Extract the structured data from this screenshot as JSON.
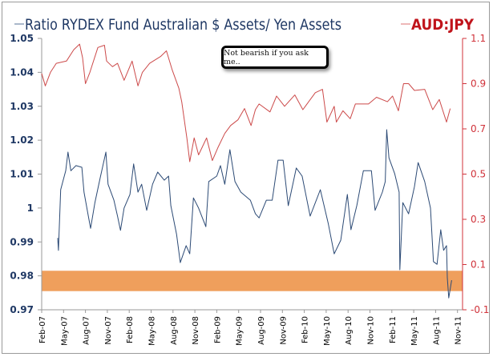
{
  "chart_data": {
    "type": "line",
    "title": "",
    "legend_placement": "top",
    "x_unit": "months since Feb-07",
    "x_tick_labels": [
      "Feb-07",
      "May-07",
      "Aug-07",
      "Nov-07",
      "Feb-08",
      "May-08",
      "Aug-08",
      "Nov-08",
      "Feb-09",
      "May-09",
      "Aug-09",
      "Nov-09",
      "Feb-10",
      "May-10",
      "Aug-10",
      "Nov-10",
      "Feb-11",
      "May-11",
      "Aug-11",
      "Nov-11"
    ],
    "x_tick_step_months": 3,
    "y_left": {
      "min": 0.97,
      "max": 1.05,
      "ticks": [
        "0.97",
        "0.98",
        "0.99",
        "1",
        "1.01",
        "1.02",
        "1.03",
        "1.04",
        "1.05"
      ]
    },
    "y_right": {
      "min": -0.1,
      "max": 1.1,
      "ticks": [
        "-0.1",
        "0.1",
        "0.3",
        "0.5",
        "0.7",
        "0.9",
        "1.1"
      ]
    },
    "highlight_band": {
      "axis": "left",
      "from": 0.9755,
      "to": 0.9815,
      "color": "#ef9f5c"
    },
    "annotation": "Not bearish if you ask me..",
    "series": [
      {
        "name": "Ratio RYDEX Fund Australian $ Assets/ Yen Assets",
        "axis": "left",
        "color": "#2c4a75",
        "points": [
          [
            2.2,
            0.9912
          ],
          [
            2.3,
            0.9875
          ],
          [
            2.6,
            1.0054
          ],
          [
            2.9,
            1.0078
          ],
          [
            3.3,
            1.011
          ],
          [
            3.6,
            1.0165
          ],
          [
            4.0,
            1.011
          ],
          [
            4.7,
            1.0125
          ],
          [
            5.5,
            1.012
          ],
          [
            5.8,
            1.0047
          ],
          [
            6.4,
            0.9976
          ],
          [
            6.7,
            0.994
          ],
          [
            7.3,
            1.0016
          ],
          [
            8.0,
            1.0087
          ],
          [
            8.8,
            1.0165
          ],
          [
            9.1,
            1.007
          ],
          [
            9.9,
            1.0023
          ],
          [
            10.4,
            0.9976
          ],
          [
            10.8,
            0.9934
          ],
          [
            11.3,
            1.0
          ],
          [
            12.1,
            1.004
          ],
          [
            12.6,
            1.013
          ],
          [
            13.2,
            1.0047
          ],
          [
            13.7,
            1.007
          ],
          [
            14.4,
            0.9993
          ],
          [
            15.2,
            1.007
          ],
          [
            15.9,
            1.0106
          ],
          [
            16.8,
            1.0082
          ],
          [
            17.4,
            1.0094
          ],
          [
            17.7,
            1.0007
          ],
          [
            18.5,
            0.9922
          ],
          [
            19.0,
            0.9839
          ],
          [
            19.8,
            0.9889
          ],
          [
            20.3,
            0.9865
          ],
          [
            20.8,
            1.003
          ],
          [
            21.5,
            1.0
          ],
          [
            22.5,
            0.9945
          ],
          [
            22.9,
            1.0078
          ],
          [
            24.0,
            1.0094
          ],
          [
            24.5,
            1.0125
          ],
          [
            25.1,
            1.007
          ],
          [
            25.8,
            1.0172
          ],
          [
            26.5,
            1.0078
          ],
          [
            27.3,
            1.0047
          ],
          [
            28.6,
            1.0023
          ],
          [
            29.3,
            0.9983
          ],
          [
            29.8,
            0.9971
          ],
          [
            30.8,
            1.0023
          ],
          [
            31.6,
            1.0023
          ],
          [
            32.4,
            1.0141
          ],
          [
            33.1,
            1.0141
          ],
          [
            33.8,
            1.0007
          ],
          [
            34.9,
            1.0118
          ],
          [
            35.7,
            1.0094
          ],
          [
            36.8,
            0.9976
          ],
          [
            38.2,
            1.0054
          ],
          [
            39.3,
            0.9953
          ],
          [
            40.1,
            0.9865
          ],
          [
            41.0,
            0.9905
          ],
          [
            41.9,
            1.004
          ],
          [
            42.4,
            0.9936
          ],
          [
            43.2,
            1.0007
          ],
          [
            44.1,
            1.011
          ],
          [
            45.2,
            1.011
          ],
          [
            45.7,
            0.9993
          ],
          [
            46.7,
            1.0047
          ],
          [
            47.1,
            1.0078
          ],
          [
            47.3,
            1.0231
          ],
          [
            47.6,
            1.0148
          ],
          [
            48.4,
            1.0101
          ],
          [
            49.0,
            1.0047
          ],
          [
            49.1,
            0.9818
          ],
          [
            49.5,
            1.0016
          ],
          [
            50.3,
            0.9983
          ],
          [
            51.1,
            1.0063
          ],
          [
            51.6,
            1.0134
          ],
          [
            52.5,
            1.0078
          ],
          [
            53.3,
            1.0
          ],
          [
            53.7,
            0.9842
          ],
          [
            54.2,
            0.9834
          ],
          [
            54.7,
            0.9936
          ],
          [
            55.1,
            0.9875
          ],
          [
            55.5,
            0.9889
          ],
          [
            55.6,
            0.9795
          ],
          [
            55.8,
            0.9735
          ],
          [
            56.2,
            0.9787
          ]
        ]
      },
      {
        "name": "AUD:JPY",
        "axis": "right",
        "color": "#cc4a4a",
        "points": [
          [
            0,
            0.945
          ],
          [
            0.5,
            0.89
          ],
          [
            1.2,
            0.95
          ],
          [
            2.0,
            0.99
          ],
          [
            3.4,
            1.0
          ],
          [
            4.4,
            1.05
          ],
          [
            5.2,
            1.075
          ],
          [
            5.6,
            1.015
          ],
          [
            6.0,
            0.9
          ],
          [
            6.6,
            0.95
          ],
          [
            7.7,
            1.06
          ],
          [
            8.6,
            1.07
          ],
          [
            8.9,
            1.0
          ],
          [
            9.7,
            0.975
          ],
          [
            10.4,
            0.99
          ],
          [
            11.3,
            0.915
          ],
          [
            12.4,
            1.0
          ],
          [
            13.2,
            0.89
          ],
          [
            13.8,
            0.95
          ],
          [
            14.8,
            0.99
          ],
          [
            16.3,
            1.02
          ],
          [
            17.1,
            1.045
          ],
          [
            17.9,
            0.96
          ],
          [
            18.8,
            0.88
          ],
          [
            19.2,
            0.82
          ],
          [
            19.9,
            0.66
          ],
          [
            20.3,
            0.555
          ],
          [
            20.9,
            0.66
          ],
          [
            21.5,
            0.585
          ],
          [
            22.6,
            0.66
          ],
          [
            23.4,
            0.56
          ],
          [
            24.2,
            0.62
          ],
          [
            25.1,
            0.68
          ],
          [
            25.9,
            0.715
          ],
          [
            26.9,
            0.74
          ],
          [
            27.8,
            0.79
          ],
          [
            28.7,
            0.715
          ],
          [
            29.3,
            0.785
          ],
          [
            29.8,
            0.81
          ],
          [
            31.3,
            0.775
          ],
          [
            32.2,
            0.845
          ],
          [
            33.3,
            0.8
          ],
          [
            34.7,
            0.85
          ],
          [
            35.8,
            0.785
          ],
          [
            37.5,
            0.86
          ],
          [
            38.5,
            0.875
          ],
          [
            39.1,
            0.73
          ],
          [
            40.1,
            0.8
          ],
          [
            40.4,
            0.73
          ],
          [
            41.3,
            0.78
          ],
          [
            42.3,
            0.745
          ],
          [
            43.0,
            0.81
          ],
          [
            44.8,
            0.81
          ],
          [
            45.9,
            0.84
          ],
          [
            47.4,
            0.82
          ],
          [
            48.1,
            0.845
          ],
          [
            48.9,
            0.78
          ],
          [
            49.6,
            0.9
          ],
          [
            50.3,
            0.9
          ],
          [
            51.1,
            0.87
          ],
          [
            52.5,
            0.875
          ],
          [
            53.6,
            0.785
          ],
          [
            54.5,
            0.83
          ],
          [
            55.5,
            0.73
          ],
          [
            56.0,
            0.79
          ]
        ]
      }
    ]
  }
}
